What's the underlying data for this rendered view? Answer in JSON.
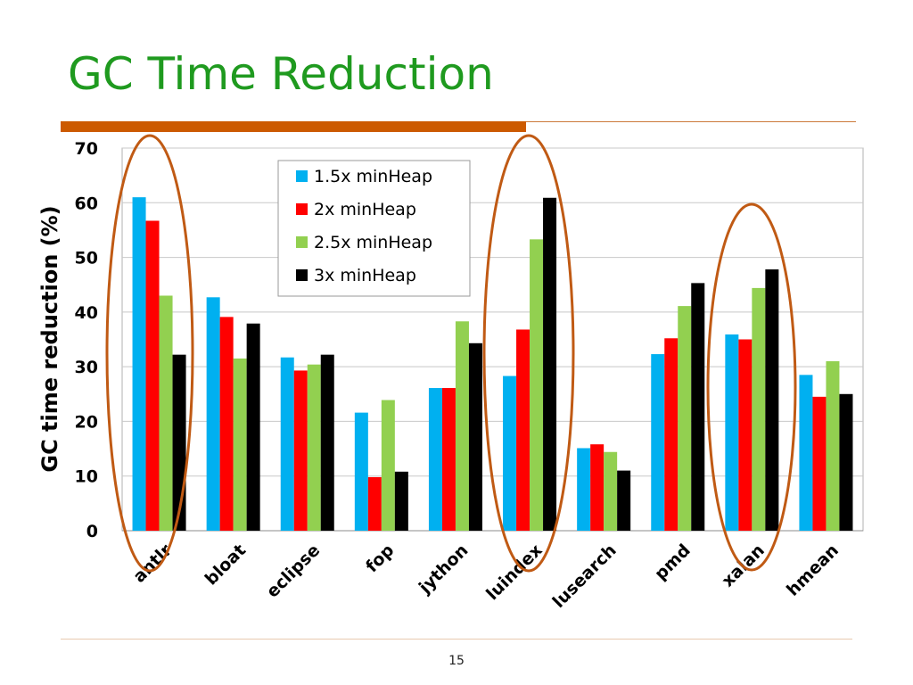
{
  "slide": {
    "title": "GC Time Reduction",
    "page_number": "15"
  },
  "colors": {
    "title": "#1f9a1f",
    "accent_rule": "#cc5a00",
    "thin_rule": "#cc7a3a",
    "bottom_rule": "#e8c9b0",
    "highlight_ellipse": "#c05a14",
    "gridline": "#c8c8c8"
  },
  "chart_data": {
    "type": "bar",
    "categories": [
      "antlr",
      "bloat",
      "eclipse",
      "fop",
      "jython",
      "luindex",
      "lusearch",
      "pmd",
      "xalan",
      "hmean"
    ],
    "series": [
      {
        "name": "1.5x minHeap",
        "color": "#00b0f0",
        "values": [
          61,
          42.7,
          31.7,
          21.6,
          26.1,
          28.3,
          15.1,
          32.3,
          35.9,
          28.5
        ]
      },
      {
        "name": "2x minHeap",
        "color": "#ff0000",
        "values": [
          56.7,
          39.1,
          29.3,
          9.8,
          26.1,
          36.8,
          15.8,
          35.2,
          35.0,
          24.5
        ]
      },
      {
        "name": "2.5x minHeap",
        "color": "#92d050",
        "values": [
          43.0,
          31.5,
          30.4,
          23.9,
          38.3,
          53.3,
          14.4,
          41.1,
          44.4,
          31.0
        ]
      },
      {
        "name": "3x minHeap",
        "color": "#000000",
        "values": [
          32.2,
          37.9,
          32.2,
          10.8,
          34.3,
          60.9,
          11.0,
          45.3,
          47.8,
          25.0
        ]
      }
    ],
    "title": "",
    "xlabel": "",
    "ylabel": "GC time reduction (%)",
    "ylim": [
      0,
      70
    ],
    "yticks": [
      "0",
      "10",
      "20",
      "30",
      "40",
      "50",
      "60",
      "70"
    ],
    "grid": true,
    "legend_position": "top-center",
    "highlighted_categories": [
      "antlr",
      "luindex",
      "xalan"
    ]
  }
}
